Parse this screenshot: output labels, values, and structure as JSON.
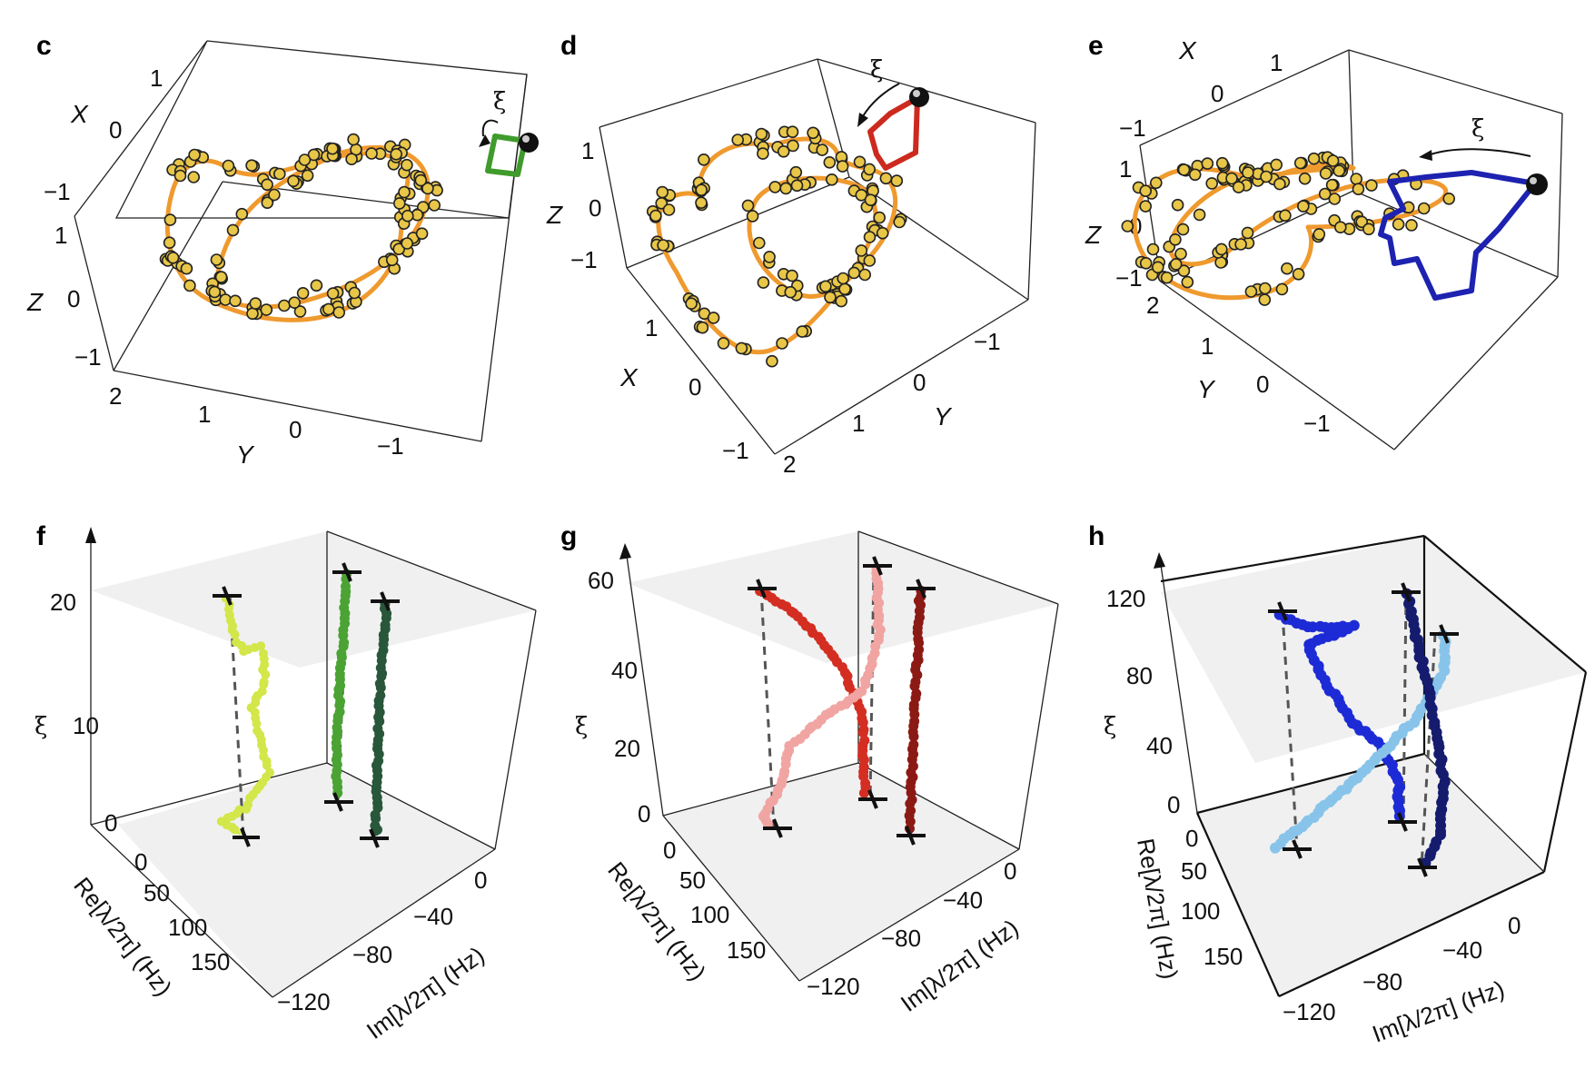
{
  "panels_top": [
    {
      "label": "c",
      "x_axis": {
        "name": "X",
        "ticks": [
          "1",
          "0",
          "−1"
        ]
      },
      "z_axis": {
        "name": "Z",
        "ticks": [
          "1",
          "0",
          "−1"
        ]
      },
      "y_axis": {
        "name": "Y",
        "ticks": [
          "2",
          "1",
          "0",
          "−1"
        ]
      },
      "inset_symbol": "ξ",
      "inset_color": "#3f9b2b"
    },
    {
      "label": "d",
      "x_axis": {
        "name": "X",
        "ticks": [
          "1",
          "0",
          "−1"
        ]
      },
      "z_axis": {
        "name": "Z",
        "ticks": [
          "1",
          "0",
          "−1"
        ]
      },
      "y_axis": {
        "name": "Y",
        "ticks": [
          "2",
          "1",
          "0",
          "−1"
        ]
      },
      "inset_symbol": "ξ",
      "inset_color": "#cc2a1e"
    },
    {
      "label": "e",
      "x_axis": {
        "name": "X",
        "ticks": [
          "1",
          "0",
          "−1"
        ]
      },
      "z_axis": {
        "name": "Z",
        "ticks": [
          "1",
          "0",
          "−1"
        ]
      },
      "y_axis": {
        "name": "Y",
        "ticks": [
          "2",
          "1",
          "0",
          "−1"
        ]
      },
      "inset_symbol": "ξ",
      "inset_color": "#1d22b0"
    }
  ],
  "panels_bottom": [
    {
      "label": "f",
      "xi_symbol": "ξ",
      "xi_ticks": [
        "20",
        "10",
        "0"
      ],
      "re_label": "Re[λ/2π] (Hz)",
      "re_ticks": [
        "0",
        "50",
        "100",
        "150"
      ],
      "im_label": "Im[λ/2π] (Hz)",
      "im_ticks": [
        "0",
        "−40",
        "−80",
        "−120"
      ],
      "colors": [
        "#d3e64a",
        "#4ba334",
        "#28573a"
      ]
    },
    {
      "label": "g",
      "xi_symbol": "ξ",
      "xi_ticks": [
        "60",
        "40",
        "20",
        "0"
      ],
      "re_label": "Re[λ/2π] (Hz)",
      "re_ticks": [
        "0",
        "50",
        "100",
        "150"
      ],
      "im_label": "Im[λ/2π] (Hz)",
      "im_ticks": [
        "0",
        "−40",
        "−80",
        "−120"
      ],
      "colors": [
        "#d42e22",
        "#f0a5a2",
        "#8c1a14"
      ]
    },
    {
      "label": "h",
      "xi_symbol": "ξ",
      "xi_ticks": [
        "120",
        "80",
        "40",
        "0"
      ],
      "re_label": "Re[λ/2π] (Hz)",
      "re_ticks": [
        "0",
        "50",
        "100",
        "150"
      ],
      "im_label": "Im[λ/2π] (Hz)",
      "im_ticks": [
        "0",
        "−40",
        "−80",
        "−120"
      ],
      "colors": [
        "#1d2bd6",
        "#88c4ea",
        "#151c6e"
      ]
    }
  ]
}
